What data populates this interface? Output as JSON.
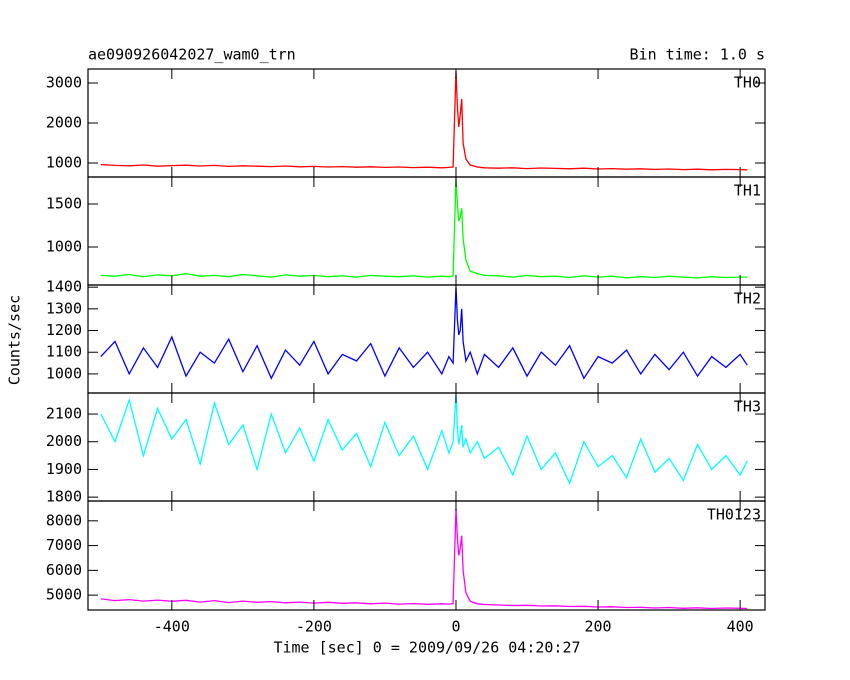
{
  "chart_data": {
    "type": "line",
    "title": "ae090926042027_wam0_trn",
    "subtitle": "Bin time: 1.0 s",
    "xlabel": "Time [sec] 0 = 2009/09/26 04:20:27",
    "ylabel": "Counts/sec",
    "xlim": [
      -518,
      435
    ],
    "xticks": [
      -400,
      -200,
      0,
      200,
      400
    ],
    "x": [
      -500,
      -480,
      -460,
      -440,
      -420,
      -400,
      -380,
      -360,
      -340,
      -320,
      -300,
      -280,
      -260,
      -240,
      -220,
      -200,
      -180,
      -160,
      -140,
      -120,
      -100,
      -80,
      -60,
      -40,
      -20,
      -10,
      -4,
      0,
      2,
      4,
      6,
      8,
      10,
      14,
      20,
      30,
      40,
      60,
      80,
      100,
      120,
      140,
      160,
      180,
      200,
      220,
      240,
      260,
      280,
      300,
      320,
      340,
      360,
      380,
      400,
      410
    ],
    "panels": [
      {
        "name": "TH0",
        "color": "#ff0000",
        "ylim": [
          650,
          3350
        ],
        "yticks": [
          1000,
          2000,
          3000
        ],
        "values": [
          960,
          940,
          930,
          950,
          920,
          935,
          945,
          925,
          940,
          915,
          930,
          920,
          910,
          925,
          905,
          915,
          900,
          910,
          895,
          905,
          890,
          900,
          885,
          895,
          880,
          890,
          900,
          3300,
          2400,
          1900,
          2200,
          2600,
          1500,
          1100,
          950,
          900,
          880,
          870,
          880,
          860,
          875,
          865,
          855,
          870,
          850,
          860,
          845,
          855,
          840,
          850,
          835,
          845,
          830,
          840,
          835,
          830
        ]
      },
      {
        "name": "TH1",
        "color": "#00ff00",
        "ylim": [
          558,
          1814
        ],
        "yticks": [
          1000,
          1500
        ],
        "values": [
          670,
          660,
          680,
          655,
          675,
          665,
          690,
          660,
          670,
          655,
          680,
          665,
          650,
          675,
          660,
          670,
          655,
          665,
          650,
          670,
          660,
          655,
          665,
          650,
          660,
          655,
          665,
          1800,
          1500,
          1300,
          1350,
          1450,
          1100,
          850,
          720,
          690,
          670,
          665,
          650,
          670,
          655,
          660,
          645,
          665,
          650,
          660,
          640,
          655,
          645,
          660,
          650,
          640,
          655,
          645,
          650,
          650
        ]
      },
      {
        "name": "TH2",
        "color": "#0000ff",
        "ylim": [
          912,
          1410
        ],
        "yticks": [
          1000,
          1100,
          1200,
          1300,
          1400
        ],
        "values": [
          1080,
          1150,
          1000,
          1120,
          1030,
          1170,
          990,
          1100,
          1050,
          1160,
          1010,
          1130,
          980,
          1110,
          1040,
          1150,
          1000,
          1090,
          1060,
          1140,
          990,
          1120,
          1030,
          1100,
          1000,
          1080,
          1050,
          1400,
          1250,
          1180,
          1200,
          1300,
          1150,
          1060,
          1100,
          1000,
          1090,
          1030,
          1120,
          990,
          1100,
          1040,
          1130,
          980,
          1080,
          1050,
          1110,
          1000,
          1090,
          1020,
          1100,
          990,
          1080,
          1030,
          1090,
          1040
        ]
      },
      {
        "name": "TH3",
        "color": "#00ffff",
        "ylim": [
          1786,
          2176
        ],
        "yticks": [
          1800,
          1900,
          2000,
          2100
        ],
        "values": [
          2100,
          2000,
          2150,
          1950,
          2120,
          2010,
          2080,
          1920,
          2140,
          1990,
          2060,
          1900,
          2100,
          1960,
          2050,
          1930,
          2080,
          1970,
          2030,
          1910,
          2070,
          1950,
          2020,
          1900,
          2040,
          1960,
          2000,
          2170,
          2050,
          1990,
          2020,
          2060,
          1980,
          2010,
          1960,
          2000,
          1940,
          1980,
          1880,
          2020,
          1900,
          1960,
          1850,
          2000,
          1910,
          1950,
          1870,
          2010,
          1890,
          1940,
          1860,
          1990,
          1900,
          1950,
          1880,
          1930
        ]
      },
      {
        "name": "TH0123",
        "color": "#ff00ff",
        "ylim": [
          4400,
          8800
        ],
        "yticks": [
          5000,
          6000,
          7000,
          8000
        ],
        "values": [
          4850,
          4780,
          4820,
          4760,
          4800,
          4750,
          4790,
          4720,
          4780,
          4700,
          4760,
          4710,
          4740,
          4690,
          4720,
          4680,
          4710,
          4670,
          4690,
          4650,
          4680,
          4640,
          4660,
          4630,
          4650,
          4640,
          4660,
          8500,
          7300,
          6600,
          6900,
          7400,
          6000,
          5100,
          4750,
          4650,
          4620,
          4600,
          4580,
          4590,
          4560,
          4570,
          4540,
          4550,
          4520,
          4530,
          4500,
          4510,
          4480,
          4500,
          4470,
          4490,
          4460,
          4480,
          4470,
          4460
        ]
      }
    ]
  }
}
